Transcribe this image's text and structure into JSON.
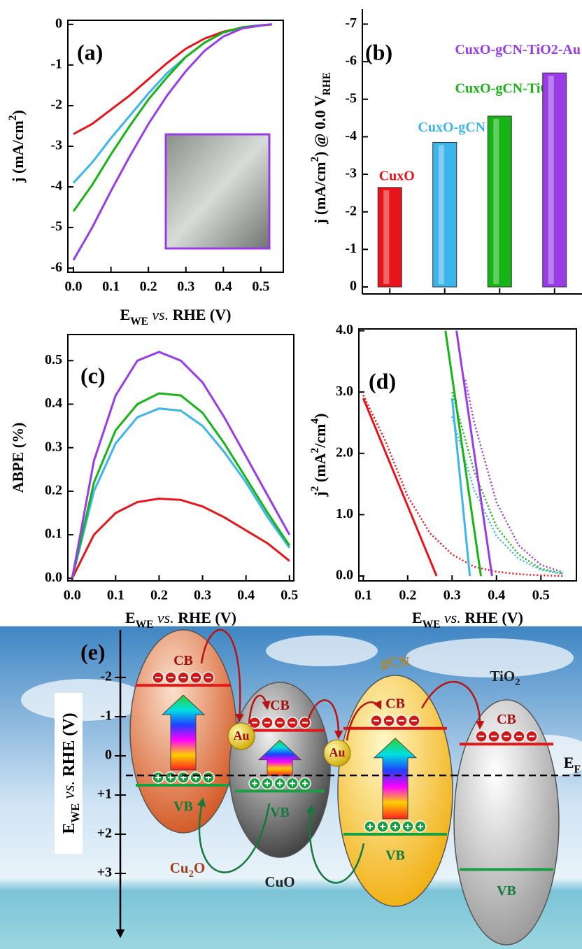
{
  "chart_data": [
    {
      "type": "line",
      "panel": "(a)",
      "xlabel": [
        {
          "text": "E"
        },
        {
          "text": "WE",
          "shift": "sub"
        },
        {
          "text": " vs.",
          "italic": true
        },
        {
          "text": " RHE (V)"
        }
      ],
      "ylabel": [
        {
          "text": "j (mA/cm"
        },
        {
          "text": "2",
          "shift": "super"
        },
        {
          "text": ")"
        }
      ],
      "x": [
        0,
        0.05,
        0.1,
        0.15,
        0.2,
        0.25,
        0.3,
        0.35,
        0.4,
        0.45,
        0.5,
        0.53
      ],
      "xlim": [
        -0.015,
        0.56
      ],
      "xticks": [
        {
          "value": 0,
          "label": "0.0"
        },
        0.1,
        0.2,
        0.3,
        0.4,
        0.5
      ],
      "ylim": [
        -6.1,
        0.1
      ],
      "yticks": [
        0,
        -1,
        -2,
        -3,
        -4,
        -5,
        -6
      ],
      "series": [
        {
          "color": "#e8141c",
          "values": [
            -2.7,
            -2.45,
            -2.1,
            -1.75,
            -1.35,
            -0.95,
            -0.6,
            -0.35,
            -0.18,
            -0.08,
            -0.03,
            0
          ]
        },
        {
          "color": "#3cb4ec",
          "values": [
            -3.9,
            -3.4,
            -2.8,
            -2.25,
            -1.7,
            -1.2,
            -0.8,
            -0.45,
            -0.2,
            -0.08,
            -0.03,
            0
          ]
        },
        {
          "color": "#16b414",
          "values": [
            -4.6,
            -3.95,
            -3.2,
            -2.5,
            -1.85,
            -1.3,
            -0.8,
            -0.45,
            -0.2,
            -0.07,
            -0.02,
            0
          ]
        },
        {
          "color": "#9a3ce6",
          "values": [
            -5.8,
            -5.0,
            -4.1,
            -3.25,
            -2.45,
            -1.75,
            -1.15,
            -0.65,
            -0.3,
            -0.1,
            -0.03,
            0
          ]
        }
      ]
    },
    {
      "type": "bar",
      "panel": "(b)",
      "ylabel": [
        {
          "text": "j (mA/cm"
        },
        {
          "text": "2",
          "shift": "super"
        },
        {
          "text": ") @ 0.0 V"
        },
        {
          "text": "RHE",
          "shift": "sub"
        }
      ],
      "categories": [
        "CuxO",
        "CuxO-gCN",
        "CuxO-gCN-TiO2",
        "CuxO-gCN-TiO2-Au"
      ],
      "values": [
        -2.65,
        -3.85,
        -4.55,
        -5.7
      ],
      "colors": [
        "#e8141c",
        "#3cb4ec",
        "#16b414",
        "#9a3ce6"
      ],
      "ylim": [
        0,
        -7.4
      ],
      "yticks": [
        0,
        -1,
        -2,
        -3,
        -4,
        -5,
        -6,
        -7
      ]
    },
    {
      "type": "line",
      "panel": "(c)",
      "xlabel": [
        {
          "text": "E"
        },
        {
          "text": "WE",
          "shift": "sub"
        },
        {
          "text": " vs.",
          "italic": true
        },
        {
          "text": " RHE (V)"
        }
      ],
      "ylabel": [
        {
          "text": "ABPE (%)"
        }
      ],
      "x": [
        0,
        0.05,
        0.1,
        0.15,
        0.2,
        0.25,
        0.3,
        0.35,
        0.4,
        0.45,
        0.5
      ],
      "xlim": [
        -0.01,
        0.51
      ],
      "xticks": [
        {
          "value": 0,
          "label": "0.0"
        },
        0.1,
        0.2,
        0.3,
        0.4,
        0.5
      ],
      "ylim": [
        -0.006,
        0.56
      ],
      "yticks": [
        {
          "value": 0,
          "label": "0.0"
        },
        0.1,
        0.2,
        0.3,
        0.4,
        0.5
      ],
      "series": [
        {
          "color": "#e8141c",
          "values": [
            0,
            0.1,
            0.15,
            0.175,
            0.183,
            0.18,
            0.165,
            0.14,
            0.11,
            0.08,
            0.04
          ]
        },
        {
          "color": "#3cb4ec",
          "values": [
            0,
            0.2,
            0.31,
            0.37,
            0.39,
            0.385,
            0.35,
            0.29,
            0.22,
            0.14,
            0.07
          ]
        },
        {
          "color": "#16b414",
          "values": [
            0,
            0.22,
            0.34,
            0.4,
            0.425,
            0.42,
            0.38,
            0.31,
            0.23,
            0.15,
            0.075
          ]
        },
        {
          "color": "#9a3ce6",
          "values": [
            0,
            0.27,
            0.42,
            0.5,
            0.52,
            0.5,
            0.45,
            0.37,
            0.28,
            0.19,
            0.1
          ]
        }
      ]
    },
    {
      "type": "line",
      "panel": "(d)",
      "xlabel": [
        {
          "text": "E"
        },
        {
          "text": "WE",
          "shift": "sub"
        },
        {
          "text": " vs.",
          "italic": true
        },
        {
          "text": " RHE (V)"
        }
      ],
      "ylabel": [
        {
          "text": "j"
        },
        {
          "text": "2",
          "shift": "super"
        },
        {
          "text": " (mA"
        },
        {
          "text": "2",
          "shift": "super"
        },
        {
          "text": "/cm"
        },
        {
          "text": "4",
          "shift": "super"
        },
        {
          "text": ")"
        }
      ],
      "xlim": [
        0.09,
        0.58
      ],
      "xticks": [
        0.1,
        0.2,
        0.3,
        0.4,
        0.5
      ],
      "ylim": [
        -0.08,
        4.03
      ],
      "yticks": [
        {
          "value": 0,
          "label": "0.0"
        },
        {
          "value": 1,
          "label": "1.0"
        },
        {
          "value": 2,
          "label": "2.0"
        },
        {
          "value": 3,
          "label": "3.0"
        },
        {
          "value": 4,
          "label": "4.0"
        }
      ],
      "series": [
        {
          "color": "#e8141c",
          "style": "dotted",
          "x": [
            0.1,
            0.15,
            0.2,
            0.25,
            0.3,
            0.35,
            0.4,
            0.45,
            0.5,
            0.55
          ],
          "values": [
            2.95,
            2.2,
            1.3,
            0.7,
            0.35,
            0.15,
            0.07,
            0.03,
            0.01,
            0
          ]
        },
        {
          "color": "#3cb4ec",
          "style": "dotted",
          "x": [
            0.3,
            0.35,
            0.4,
            0.45,
            0.5,
            0.55
          ],
          "values": [
            2.6,
            1.4,
            0.65,
            0.28,
            0.1,
            0.03
          ]
        },
        {
          "color": "#16b414",
          "style": "dotted",
          "x": [
            0.3,
            0.35,
            0.4,
            0.45,
            0.5,
            0.55
          ],
          "values": [
            3.0,
            1.7,
            0.8,
            0.35,
            0.12,
            0.04
          ]
        },
        {
          "color": "#9a3ce6",
          "style": "dotted",
          "x": [
            0.33,
            0.35,
            0.4,
            0.45,
            0.5,
            0.55
          ],
          "values": [
            3.2,
            2.5,
            1.2,
            0.5,
            0.18,
            0.06
          ]
        },
        {
          "color": "#e8141c",
          "style": "solid",
          "x": [
            0.1,
            0.265
          ],
          "values": [
            2.9,
            0
          ]
        },
        {
          "color": "#3cb4ec",
          "style": "solid",
          "x": [
            0.3,
            0.34
          ],
          "values": [
            2.9,
            0
          ]
        },
        {
          "color": "#16b414",
          "style": "solid",
          "x": [
            0.285,
            0.365
          ],
          "values": [
            4.0,
            0
          ]
        },
        {
          "color": "#9a3ce6",
          "style": "solid",
          "x": [
            0.31,
            0.39
          ],
          "values": [
            4.0,
            0
          ]
        }
      ]
    }
  ],
  "diagram": {
    "label": "(e)",
    "axis_label": [
      {
        "text": "E"
      },
      {
        "text": "WE",
        "shift": "sub"
      },
      {
        "text": " vs.",
        "italic": true
      },
      {
        "text": " RHE (V)"
      }
    ],
    "scale_labels": [
      "-2",
      "-1",
      "0",
      "+1",
      "+2",
      "+3"
    ],
    "fermi": [
      {
        "text": "E"
      },
      {
        "text": "F",
        "shift": "sub"
      }
    ],
    "junctions": [
      "Au",
      "Au"
    ],
    "materials": [
      {
        "name": [
          {
            "text": "Cu"
          },
          {
            "text": "2",
            "shift": "sub"
          },
          {
            "text": "O"
          }
        ],
        "cb": "CB",
        "vb": "VB"
      },
      {
        "name": [
          {
            "text": "CuO"
          }
        ],
        "cb": "CB",
        "vb": "VB"
      },
      {
        "name": [
          {
            "text": "gCN"
          }
        ],
        "cb": "CB",
        "vb": "VB"
      },
      {
        "name": [
          {
            "text": "TiO"
          },
          {
            "text": "2",
            "shift": "sub"
          }
        ],
        "cb": "CB",
        "vb": "VB"
      }
    ]
  }
}
